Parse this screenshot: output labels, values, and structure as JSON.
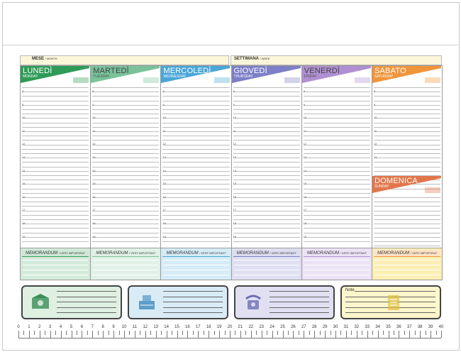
{
  "header": {
    "month_label": "MESE",
    "month_sub": "/ MONTH",
    "week_label": "SETTIMANA",
    "week_sub": "/ WEEK"
  },
  "days": [
    {
      "name": "LUNEDÌ",
      "sub": "MONDAY",
      "color": "#2e9b57",
      "pale": "#cfe7d6",
      "memo": "#d4ebdb"
    },
    {
      "name": "MARTEDÌ",
      "sub": "TUESDAY",
      "color": "#79c29a",
      "pale": "#dff0e5",
      "memo": "#e1f1e7"
    },
    {
      "name": "MERCOLEDÌ",
      "sub": "WEDNESDAY",
      "color": "#4aa6d8",
      "pale": "#d5ebf6",
      "memo": "#d6ecf7"
    },
    {
      "name": "GIOVEDÌ",
      "sub": "THURSDAY",
      "color": "#7d7fc7",
      "pale": "#dcdcf0",
      "memo": "#e0e0f2"
    },
    {
      "name": "VENERDÌ",
      "sub": "FRIDAY",
      "color": "#b08fd2",
      "pale": "#ece2f5",
      "memo": "#ece3f5"
    },
    {
      "name": "SABATO",
      "sub": "SATURDAY",
      "color": "#f0953c",
      "pale": "#fde2c7",
      "memo": "#fcefb4"
    }
  ],
  "sunday": {
    "name": "DOMENICA",
    "sub": "SUNDAY",
    "color": "#e2764b",
    "pale": "#f8d3c2"
  },
  "hours": [
    "8",
    "9",
    "10",
    "11",
    "12",
    "13",
    "14",
    "15",
    "16",
    "17",
    "18",
    "19"
  ],
  "memo": {
    "label": "MEMORANDUM",
    "sub": "/ VERY IMPORTANT"
  },
  "bottom_boxes": [
    {
      "icon": "money-icon",
      "fill": "#dff0e3",
      "color": "#3a8f56"
    },
    {
      "icon": "cash-register-icon",
      "fill": "#d9ecf6",
      "color": "#3d8bbf"
    },
    {
      "icon": "telephone-icon",
      "fill": "#e0e0f2",
      "color": "#6d6fb5"
    },
    {
      "icon": "notepad-icon",
      "fill": "#fdf6cc",
      "color": "#e0c13c",
      "label": "Note"
    }
  ],
  "ruler": [
    "0",
    "1",
    "2",
    "3",
    "4",
    "5",
    "6",
    "7",
    "8",
    "9",
    "10",
    "11",
    "12",
    "13",
    "14",
    "15",
    "16",
    "17",
    "18",
    "19",
    "20",
    "21",
    "22",
    "23",
    "24",
    "25",
    "26",
    "27",
    "28",
    "29",
    "30",
    "31",
    "32",
    "33",
    "34",
    "35",
    "36",
    "37",
    "38",
    "39",
    "40"
  ]
}
